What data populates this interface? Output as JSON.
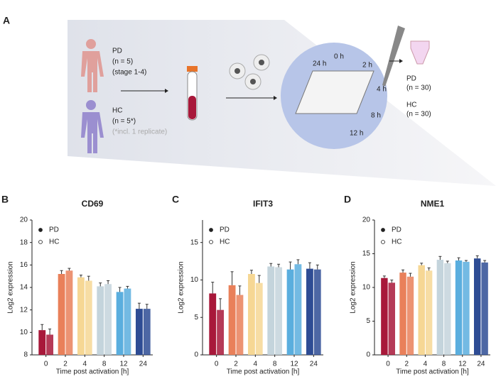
{
  "diagram": {
    "panel": "A",
    "pd_label": "PD",
    "pd_n": "(n = 5)",
    "pd_stage": "(stage 1-4)",
    "hc_label": "HC",
    "hc_n": "(n = 5*)",
    "hc_note": "(*incl. 1 replicate)",
    "timepoints": [
      "0 h",
      "2 h",
      "4 h",
      "8 h",
      "12 h",
      "24 h"
    ],
    "out_pd_label": "PD",
    "out_pd_n": "(n = 30)",
    "out_hc_label": "HC",
    "out_hc_n": "(n = 30)"
  },
  "chart_data": [
    {
      "type": "bar",
      "panel": "B",
      "title": "CD69",
      "x_label": "Time post activation [h]",
      "y_label": "Log2 expression",
      "categories": [
        "0",
        "2",
        "4",
        "8",
        "12",
        "24"
      ],
      "colors": [
        "#a8183a",
        "#e9805a",
        "#f6d794",
        "#c4d4dc",
        "#5aaede",
        "#2e4c94"
      ],
      "series": [
        {
          "name": "PD",
          "marker": "filled",
          "values": [
            10.2,
            15.2,
            14.9,
            14.1,
            13.6,
            12.1
          ],
          "errors": [
            0.5,
            0.3,
            0.2,
            0.3,
            0.4,
            0.5
          ]
        },
        {
          "name": "HC",
          "marker": "open",
          "values": [
            9.8,
            15.5,
            14.6,
            14.3,
            13.9,
            12.1
          ],
          "errors": [
            0.5,
            0.2,
            0.4,
            0.3,
            0.2,
            0.4
          ]
        }
      ],
      "ylim": [
        8,
        20
      ],
      "yticks": [
        8,
        10,
        12,
        14,
        16,
        18,
        20
      ]
    },
    {
      "type": "bar",
      "panel": "C",
      "title": "IFIT3",
      "x_label": "Time post activation [h]",
      "y_label": "Log2 expression",
      "categories": [
        "0",
        "2",
        "4",
        "8",
        "12",
        "24"
      ],
      "colors": [
        "#a8183a",
        "#e9805a",
        "#f6d794",
        "#c4d4dc",
        "#5aaede",
        "#2e4c94"
      ],
      "series": [
        {
          "name": "PD",
          "marker": "filled",
          "values": [
            8.2,
            9.3,
            10.8,
            11.8,
            11.4,
            11.5
          ],
          "errors": [
            1.5,
            1.8,
            0.5,
            0.4,
            1.0,
            0.8
          ]
        },
        {
          "name": "HC",
          "marker": "open",
          "values": [
            6.0,
            8.0,
            9.6,
            11.7,
            12.1,
            11.4
          ],
          "errors": [
            1.5,
            1.2,
            1.0,
            0.4,
            0.6,
            0.6
          ]
        }
      ],
      "ylim": [
        0,
        18
      ],
      "yticks": [
        0,
        5,
        10,
        15
      ]
    },
    {
      "type": "bar",
      "panel": "D",
      "title": "NME1",
      "x_label": "Time post activation [h]",
      "y_label": "Log2 expression",
      "categories": [
        "0",
        "2",
        "4",
        "8",
        "12",
        "24"
      ],
      "colors": [
        "#a8183a",
        "#e9805a",
        "#f6d794",
        "#c4d4dc",
        "#5aaede",
        "#2e4c94"
      ],
      "series": [
        {
          "name": "PD",
          "marker": "filled",
          "values": [
            11.4,
            12.2,
            13.3,
            14.1,
            14.0,
            14.3
          ],
          "errors": [
            0.3,
            0.4,
            0.3,
            0.5,
            0.4,
            0.4
          ]
        },
        {
          "name": "HC",
          "marker": "open",
          "values": [
            10.7,
            11.6,
            12.5,
            13.6,
            13.8,
            13.7
          ],
          "errors": [
            0.4,
            0.5,
            0.4,
            0.3,
            0.2,
            0.3
          ]
        }
      ],
      "ylim": [
        0,
        20
      ],
      "yticks": [
        0,
        5,
        10,
        15,
        20
      ]
    }
  ]
}
